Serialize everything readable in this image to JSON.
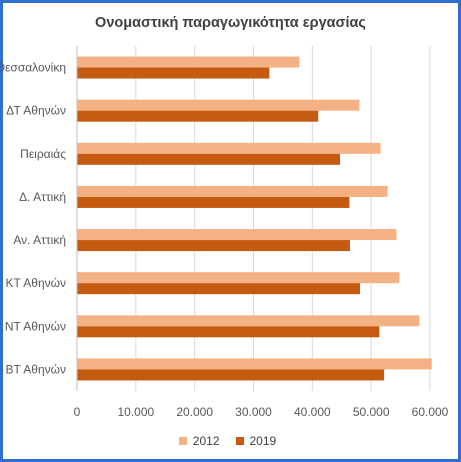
{
  "chart_data": {
    "type": "bar",
    "orientation": "horizontal",
    "title": "Ονομαστική παραγωγικότητα εργασίας",
    "xlabel": "",
    "ylabel": "",
    "categories": [
      "Θεσσαλονίκη",
      "ΔΤ Αθηνών",
      "Πειραιάς",
      "Δ. Αττική",
      "Αν. Αττική",
      "ΚΤ Αθηνών",
      "ΝΤ Αθηνών",
      "ΒΤ Αθηνών"
    ],
    "series": [
      {
        "name": "2012",
        "color": "#f4b183",
        "values": [
          37800,
          48000,
          51600,
          52800,
          54300,
          54800,
          58200,
          60300
        ]
      },
      {
        "name": "2019",
        "color": "#c55a11",
        "values": [
          32700,
          41000,
          44700,
          46300,
          46400,
          48100,
          51400,
          52200
        ]
      }
    ],
    "xlim": [
      0,
      60000
    ],
    "xticks": [
      "0",
      "10.000",
      "20.000",
      "30.000",
      "40.000",
      "50.000",
      "60.000"
    ],
    "grid": true,
    "legend_position": "bottom"
  }
}
